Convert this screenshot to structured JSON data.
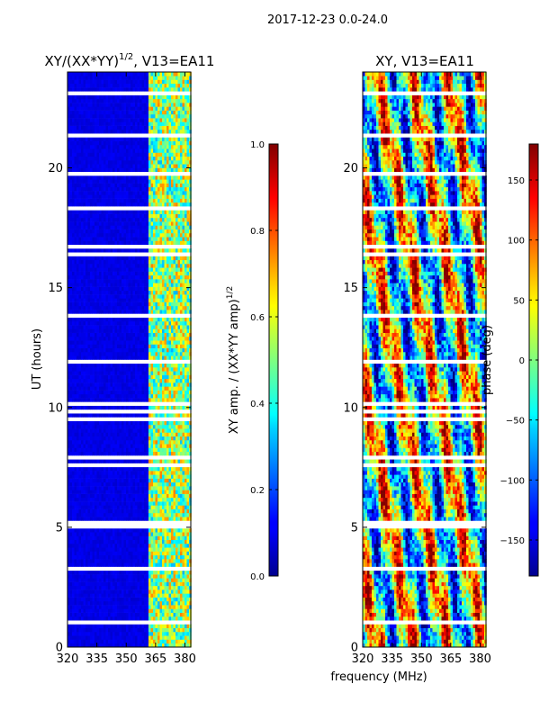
{
  "suptitle": "2017-12-23 0.0-24.0",
  "shared_xlabel": "frequency (MHz)",
  "chart_data": [
    {
      "type": "heatmap",
      "title": "XY/(XX*YY)^1/2, V13=EA11",
      "title_main": "XY/(XX*YY)",
      "title_exp": "1/2",
      "title_tail": ", V13=EA11",
      "xlabel": "frequency (MHz)",
      "ylabel": "UT (hours)",
      "xlim": [
        320,
        383
      ],
      "ylim": [
        0,
        24
      ],
      "xticks": [
        320,
        335,
        350,
        365,
        380
      ],
      "yticks": [
        0,
        5,
        10,
        15,
        20
      ],
      "colormap": "jet",
      "colorbar": {
        "label_main": "XY amp. / (XX*YY amp)",
        "label_exp": "1/2",
        "range": [
          0.0,
          1.0
        ],
        "ticks": [
          "0.0",
          "0.2",
          "0.4",
          "0.6",
          "0.8",
          "1.0"
        ],
        "tick_values": [
          0.0,
          0.2,
          0.4,
          0.6,
          0.8,
          1.0
        ]
      },
      "notes": "Amplitude near 0 below ~361 MHz; band 361-383 MHz shows values ~0.3-0.8; horizontal white rows are flagged/missing times."
    },
    {
      "type": "heatmap",
      "title": "XY, V13=EA11",
      "xlabel": "frequency (MHz)",
      "ylabel": "",
      "xlim": [
        320,
        383
      ],
      "ylim": [
        0,
        24
      ],
      "xticks": [
        320,
        335,
        350,
        365,
        380
      ],
      "yticks": [
        0,
        5,
        10,
        15,
        20
      ],
      "colormap": "jet",
      "colorbar": {
        "label_main": "phase (deg)",
        "range": [
          -180,
          180
        ],
        "ticks": [
          "−150",
          "−100",
          "−50",
          "0",
          "50",
          "100",
          "150"
        ],
        "tick_values": [
          -150,
          -100,
          -50,
          0,
          50,
          100,
          150
        ]
      },
      "notes": "Phase values span -180 to 180 deg with banded structure; white rows are flagged/missing times."
    }
  ]
}
